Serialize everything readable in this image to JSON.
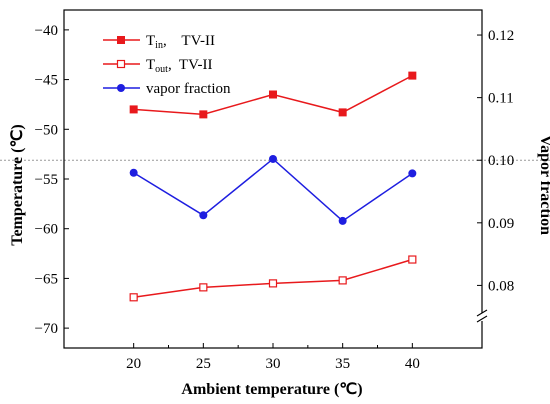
{
  "chart_data": {
    "type": "line",
    "x": [
      20,
      25,
      30,
      35,
      40
    ],
    "xlabel": "Ambient temperature (℃)",
    "xlim": [
      15,
      45
    ],
    "ylabel_left": "Temperature (℃)",
    "ylim_left": [
      -72,
      -38
    ],
    "yticks_left": [
      -70,
      -65,
      -60,
      -55,
      -50,
      -45,
      -40
    ],
    "ylabel_right": "Vapor fraction",
    "ylim_right": [
      0.07,
      0.124
    ],
    "yticks_right": [
      0.08,
      0.09,
      0.1,
      0.11,
      0.12
    ],
    "yticklabels_right": [
      "0.08",
      "0.09",
      "0.10",
      "0.11",
      "0.12"
    ],
    "right_axis_break": true,
    "reference_line": {
      "axis": "right",
      "value": 0.1,
      "style": "dotted"
    },
    "series": [
      {
        "name_main": "T",
        "name_sub": "in",
        "name_suffix": ",    TV-II",
        "axis": "left",
        "values": [
          -48.0,
          -48.5,
          -46.5,
          -48.3,
          -44.6
        ],
        "color": "#e8191c",
        "marker": "square-filled"
      },
      {
        "name_main": "T",
        "name_sub": "out",
        "name_suffix": ",  TV-II",
        "axis": "left",
        "values": [
          -66.9,
          -65.9,
          -65.5,
          -65.2,
          -63.1
        ],
        "color": "#e8191c",
        "marker": "square-open"
      },
      {
        "name": "vapor fraction",
        "axis": "right",
        "values": [
          0.098,
          0.0912,
          0.1002,
          0.0903,
          0.0979
        ],
        "color": "#1e1ee0",
        "marker": "circle-filled"
      }
    ],
    "legend": "top-left"
  }
}
